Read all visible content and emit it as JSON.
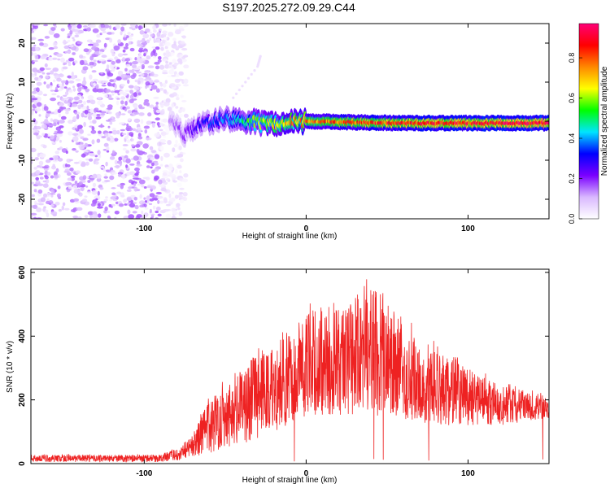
{
  "title": "S197.2025.272.09.29.C44",
  "chart_data": [
    {
      "type": "heatmap",
      "xlabel": "Height of straight line (km)",
      "ylabel": "Frequency (Hz)",
      "xlim": [
        -170,
        150
      ],
      "ylim": [
        -25,
        25
      ],
      "xticks": [
        -100,
        0,
        100
      ],
      "xtick_labels": [
        "-100",
        "0",
        "100"
      ],
      "yticks": [
        -20,
        -10,
        0,
        10,
        20
      ],
      "ytick_labels": [
        "-20",
        "-10",
        "0",
        "10",
        "20"
      ],
      "colorbar": {
        "label": "Normalized spectral amplitude",
        "range": [
          0,
          0.97
        ],
        "ticks": [
          0.0,
          0.2,
          0.4,
          0.6,
          0.8
        ],
        "tick_labels": [
          "0.0",
          "0.2",
          "0.4",
          "0.6",
          "0.8"
        ],
        "colors": [
          "#ffffff",
          "#d9b8ff",
          "#7a00ff",
          "#0000ff",
          "#00e5ff",
          "#00ff00",
          "#ffff00",
          "#ff8800",
          "#ff0000",
          "#ff0077"
        ]
      },
      "noise_region": {
        "x": [
          -170,
          -80
        ],
        "y": [
          -25,
          25
        ],
        "level": 0.08
      },
      "ridge": [
        {
          "x": -84,
          "y": 0.0,
          "value": 0.15
        },
        {
          "x": -75,
          "y": -3.5,
          "value": 0.2
        },
        {
          "x": -65,
          "y": -0.5,
          "value": 0.3
        },
        {
          "x": -50,
          "y": 0.5,
          "value": 0.4
        },
        {
          "x": -35,
          "y": 0.0,
          "value": 0.55
        },
        {
          "x": -20,
          "y": -0.8,
          "value": 0.7
        },
        {
          "x": 0,
          "y": 0.0,
          "value": 0.8
        },
        {
          "x": 30,
          "y": -0.3,
          "value": 0.85
        },
        {
          "x": 60,
          "y": -0.5,
          "value": 0.9
        },
        {
          "x": 100,
          "y": -0.5,
          "value": 0.92
        },
        {
          "x": 150,
          "y": -0.5,
          "value": 0.95
        }
      ],
      "faint_streak": [
        {
          "x": -45,
          "y": 6
        },
        {
          "x": -30,
          "y": 14
        },
        {
          "x": -28,
          "y": 17
        }
      ]
    },
    {
      "type": "line",
      "xlabel": "Height of straight line (km)",
      "ylabel": "SNR (10 * v/v)",
      "xlim": [
        -170,
        150
      ],
      "ylim": [
        0,
        610
      ],
      "xticks": [
        -100,
        0,
        100
      ],
      "xtick_labels": [
        "-100",
        "0",
        "100"
      ],
      "yticks": [
        0,
        200,
        400,
        600
      ],
      "ytick_labels": [
        "0",
        "200",
        "400",
        "600"
      ],
      "series": [
        {
          "color": "#ee2222",
          "envelope": {
            "x": [
              -170,
              -90,
              -80,
              -70,
              -60,
              -50,
              -40,
              -30,
              -20,
              -10,
              0,
              10,
              20,
              30,
              40,
              50,
              60,
              80,
              100,
              120,
              150
            ],
            "low": [
              5,
              5,
              10,
              20,
              30,
              50,
              60,
              80,
              100,
              120,
              150,
              150,
              150,
              150,
              150,
              150,
              140,
              120,
              120,
              120,
              140
            ],
            "high": [
              30,
              30,
              50,
              100,
              220,
              280,
              320,
              380,
              400,
              460,
              500,
              540,
              520,
              560,
              600,
              560,
              480,
              380,
              320,
              260,
              220
            ]
          }
        }
      ]
    }
  ]
}
